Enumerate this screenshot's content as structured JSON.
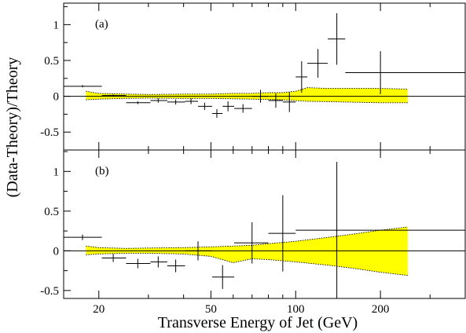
{
  "chart_data": {
    "type": "scatter",
    "xlabel": "Transverse Energy of Jet (GeV)",
    "ylabel": "(Data-Theory)/Theory",
    "x_scale": "log",
    "xlim": [
      15,
      400
    ],
    "x_ticks": [
      20,
      50,
      100,
      200
    ],
    "x_tick_labels": [
      "20",
      "50",
      "100",
      "200"
    ],
    "band_color": "#ffff00",
    "panels": [
      {
        "label": "(a)",
        "ylim": [
          -0.75,
          1.3
        ],
        "y_ticks": [
          -0.5,
          0,
          0.5,
          1
        ],
        "y_tick_labels": [
          "-0.5",
          "0",
          "0.5",
          "1"
        ],
        "points": [
          {
            "x": 17.5,
            "xlo": 15.0,
            "xhi": 20.5,
            "y": 0.14,
            "err": 0.015
          },
          {
            "x": 22.5,
            "xlo": 20.5,
            "xhi": 25.0,
            "y": 0.01,
            "err": 0.015
          },
          {
            "x": 27.5,
            "xlo": 25.0,
            "xhi": 30.5,
            "y": -0.09,
            "err": 0.02
          },
          {
            "x": 32.5,
            "xlo": 30.5,
            "xhi": 35.0,
            "y": -0.06,
            "err": 0.03
          },
          {
            "x": 37.5,
            "xlo": 35.0,
            "xhi": 40.5,
            "y": -0.08,
            "err": 0.035
          },
          {
            "x": 42.5,
            "xlo": 40.5,
            "xhi": 45.0,
            "y": -0.07,
            "err": 0.04
          },
          {
            "x": 47.5,
            "xlo": 45.0,
            "xhi": 50.5,
            "y": -0.14,
            "err": 0.05
          },
          {
            "x": 52.5,
            "xlo": 50.5,
            "xhi": 55.0,
            "y": -0.24,
            "err": 0.06
          },
          {
            "x": 57.5,
            "xlo": 55.0,
            "xhi": 60.5,
            "y": -0.14,
            "err": 0.07
          },
          {
            "x": 65.0,
            "xlo": 60.5,
            "xhi": 70.0,
            "y": -0.17,
            "err": 0.06
          },
          {
            "x": 75.0,
            "xlo": 70.0,
            "xhi": 80.0,
            "y": 0.0,
            "err": 0.09
          },
          {
            "x": 85.0,
            "xlo": 80.0,
            "xhi": 90.0,
            "y": -0.06,
            "err": 0.1
          },
          {
            "x": 95.0,
            "xlo": 90.0,
            "xhi": 100.0,
            "y": -0.08,
            "err": 0.14
          },
          {
            "x": 105.0,
            "xlo": 100.0,
            "xhi": 110.0,
            "y": 0.27,
            "err": 0.22
          },
          {
            "x": 120.0,
            "xlo": 110.0,
            "xhi": 130.0,
            "y": 0.46,
            "err": 0.2
          },
          {
            "x": 140.0,
            "xlo": 130.0,
            "xhi": 150.0,
            "y": 0.8,
            "err": 0.36
          },
          {
            "x": 200.0,
            "xlo": 150.0,
            "xhi": 400.0,
            "y": 0.33,
            "err": 0.3
          }
        ],
        "band": {
          "x": [
            18,
            20,
            25,
            30,
            40,
            50,
            60,
            70,
            80,
            90,
            100,
            110,
            130,
            150,
            200,
            250
          ],
          "upper": [
            0.07,
            0.04,
            0.03,
            0.025,
            0.03,
            0.03,
            0.04,
            0.04,
            0.05,
            0.05,
            0.07,
            0.12,
            0.11,
            0.11,
            0.11,
            0.1
          ],
          "lower": [
            -0.05,
            -0.04,
            -0.03,
            -0.025,
            -0.03,
            -0.03,
            -0.035,
            -0.04,
            -0.045,
            -0.05,
            -0.06,
            -0.07,
            -0.075,
            -0.08,
            -0.09,
            -0.09
          ]
        }
      },
      {
        "label": "(b)",
        "ylim": [
          -0.6,
          1.27
        ],
        "y_ticks": [
          -0.5,
          0,
          0.5,
          1
        ],
        "y_tick_labels": [
          "-0.5",
          "0",
          "0.5",
          "1"
        ],
        "points": [
          {
            "x": 17.5,
            "xlo": 15.0,
            "xhi": 20.5,
            "y": 0.17,
            "err": 0.035
          },
          {
            "x": 22.5,
            "xlo": 20.5,
            "xhi": 25.0,
            "y": -0.09,
            "err": 0.05
          },
          {
            "x": 27.5,
            "xlo": 25.0,
            "xhi": 30.5,
            "y": -0.16,
            "err": 0.06
          },
          {
            "x": 32.5,
            "xlo": 30.5,
            "xhi": 35.0,
            "y": -0.14,
            "err": 0.07
          },
          {
            "x": 37.5,
            "xlo": 35.0,
            "xhi": 40.5,
            "y": -0.19,
            "err": 0.08
          },
          {
            "x": 45.0,
            "xlo": 40.5,
            "xhi": 50.5,
            "y": 0.0,
            "err": 0.12
          },
          {
            "x": 55.0,
            "xlo": 50.5,
            "xhi": 60.5,
            "y": -0.33,
            "err": 0.15
          },
          {
            "x": 70.0,
            "xlo": 60.5,
            "xhi": 80.0,
            "y": 0.1,
            "err": 0.26
          },
          {
            "x": 90.0,
            "xlo": 80.0,
            "xhi": 100.0,
            "y": 0.22,
            "err": 0.48
          },
          {
            "x": 140.0,
            "xlo": 100.0,
            "xhi": 400.0,
            "y": 0.26,
            "err": 0.86
          }
        ],
        "band": {
          "x": [
            18,
            20,
            25,
            30,
            40,
            50,
            60,
            70,
            80,
            100,
            130,
            160,
            200,
            250
          ],
          "upper": [
            0.06,
            0.04,
            0.03,
            0.035,
            0.04,
            0.05,
            0.06,
            0.07,
            0.09,
            0.12,
            0.17,
            0.21,
            0.26,
            0.3
          ],
          "lower": [
            -0.05,
            -0.04,
            -0.03,
            -0.03,
            -0.04,
            -0.07,
            -0.15,
            -0.1,
            -0.11,
            -0.14,
            -0.18,
            -0.22,
            -0.27,
            -0.31
          ]
        }
      }
    ]
  }
}
